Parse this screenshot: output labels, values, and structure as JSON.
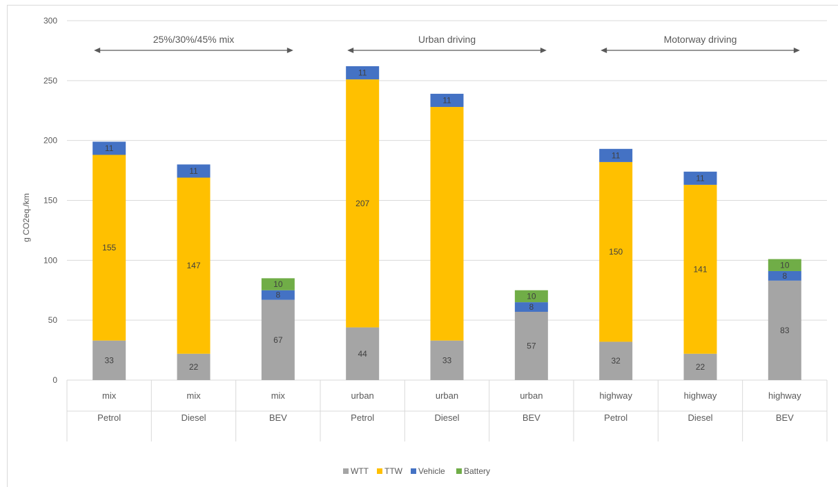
{
  "chart_data": {
    "type": "bar",
    "stacked": true,
    "ylabel": "g CO2eq./km",
    "xlabel": "",
    "ylim": [
      0,
      300
    ],
    "yticks": [
      0,
      50,
      100,
      150,
      200,
      250,
      300
    ],
    "grid": true,
    "legend_position": "bottom",
    "categories": [
      {
        "mode": "mix",
        "fuel": "Petrol"
      },
      {
        "mode": "mix",
        "fuel": "Diesel"
      },
      {
        "mode": "mix",
        "fuel": "BEV"
      },
      {
        "mode": "urban",
        "fuel": "Petrol"
      },
      {
        "mode": "urban",
        "fuel": "Diesel"
      },
      {
        "mode": "urban",
        "fuel": "BEV"
      },
      {
        "mode": "highway",
        "fuel": "Petrol"
      },
      {
        "mode": "highway",
        "fuel": "Diesel"
      },
      {
        "mode": "highway",
        "fuel": "BEV"
      }
    ],
    "series": [
      {
        "name": "WTT",
        "color": "#a5a5a5",
        "values": [
          33,
          22,
          67,
          44,
          33,
          57,
          32,
          22,
          83
        ]
      },
      {
        "name": "TTW",
        "color": "#ffc000",
        "values": [
          155,
          147,
          0,
          207,
          195,
          0,
          150,
          141,
          0
        ]
      },
      {
        "name": "Vehicle",
        "color": "#4472c4",
        "values": [
          11,
          11,
          8,
          11,
          11,
          8,
          11,
          11,
          8
        ]
      },
      {
        "name": "Battery",
        "color": "#70ad47",
        "values": [
          0,
          0,
          10,
          0,
          0,
          10,
          0,
          0,
          10
        ]
      }
    ],
    "data_labels": [
      [
        "33",
        "22",
        "67",
        "44",
        "33",
        "57",
        "32",
        "22",
        "83"
      ],
      [
        "155",
        "147",
        "",
        "207",
        "",
        "",
        "150",
        "141",
        ""
      ],
      [
        "11",
        "11",
        "8",
        "11",
        "11",
        "8",
        "11",
        "11",
        "8"
      ],
      [
        "",
        "",
        "10",
        "",
        "",
        "10",
        "",
        "",
        "10"
      ]
    ],
    "annotations": [
      {
        "text": "25%/30%/45% mix",
        "from_category": 0,
        "to_category": 2
      },
      {
        "text": "Urban driving",
        "from_category": 3,
        "to_category": 5
      },
      {
        "text": "Motorway driving",
        "from_category": 6,
        "to_category": 8
      }
    ]
  },
  "colors": {
    "grid": "#d9d9d9",
    "axis_text": "#595959",
    "label_text": "#404040",
    "arrow": "#595959"
  }
}
